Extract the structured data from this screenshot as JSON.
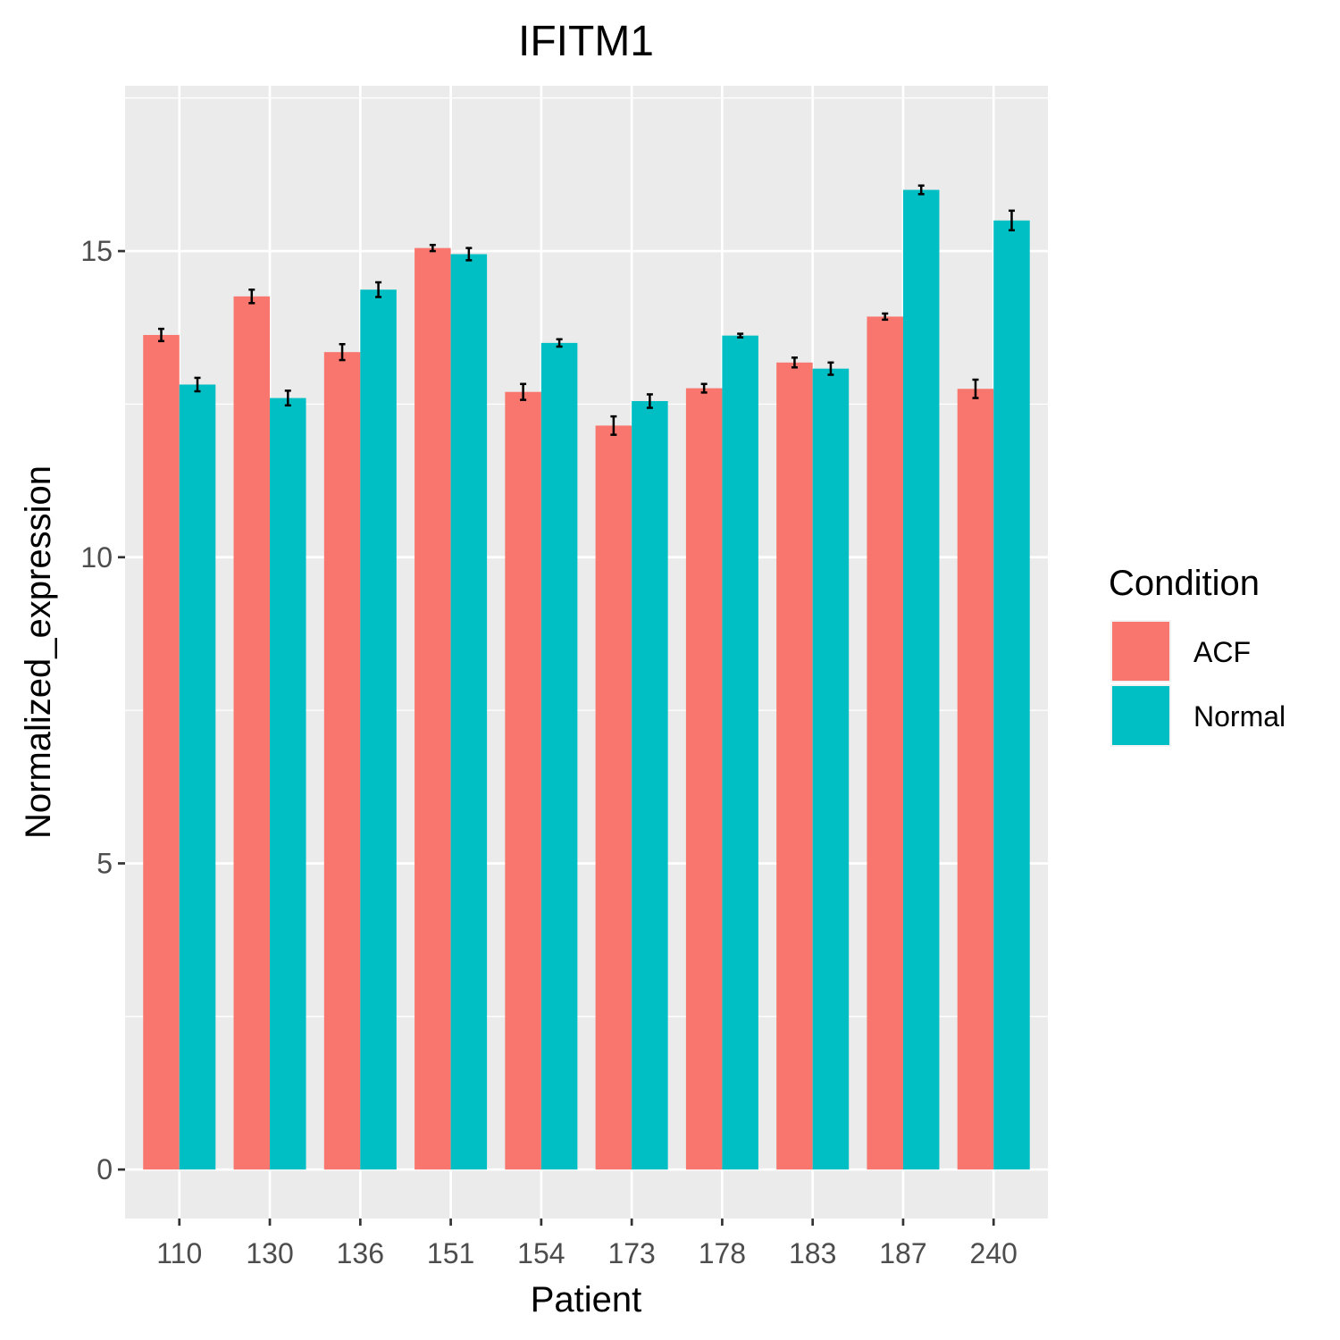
{
  "chart_data": {
    "type": "bar",
    "title": "IFITM1",
    "xlabel": "Patient",
    "ylabel": "Normalized_expression",
    "categories": [
      "110",
      "130",
      "136",
      "151",
      "154",
      "173",
      "178",
      "183",
      "187",
      "240"
    ],
    "series": [
      {
        "name": "ACF",
        "color": "#F8766D",
        "values": [
          13.63,
          14.26,
          13.35,
          15.05,
          12.7,
          12.15,
          12.76,
          13.18,
          13.93,
          12.75
        ],
        "error": [
          0.1,
          0.11,
          0.13,
          0.05,
          0.13,
          0.15,
          0.07,
          0.08,
          0.05,
          0.15
        ]
      },
      {
        "name": "Normal",
        "color": "#00BFC4",
        "values": [
          12.82,
          12.6,
          14.37,
          14.95,
          13.5,
          12.55,
          13.62,
          13.08,
          16.0,
          15.5
        ],
        "error": [
          0.11,
          0.12,
          0.12,
          0.1,
          0.06,
          0.11,
          0.03,
          0.1,
          0.07,
          0.16
        ]
      }
    ],
    "yticks": [
      0,
      5,
      10,
      15
    ],
    "ylim": [
      -0.8,
      17.7
    ],
    "legend": {
      "title": "Condition",
      "position": "right"
    },
    "grid": true
  }
}
